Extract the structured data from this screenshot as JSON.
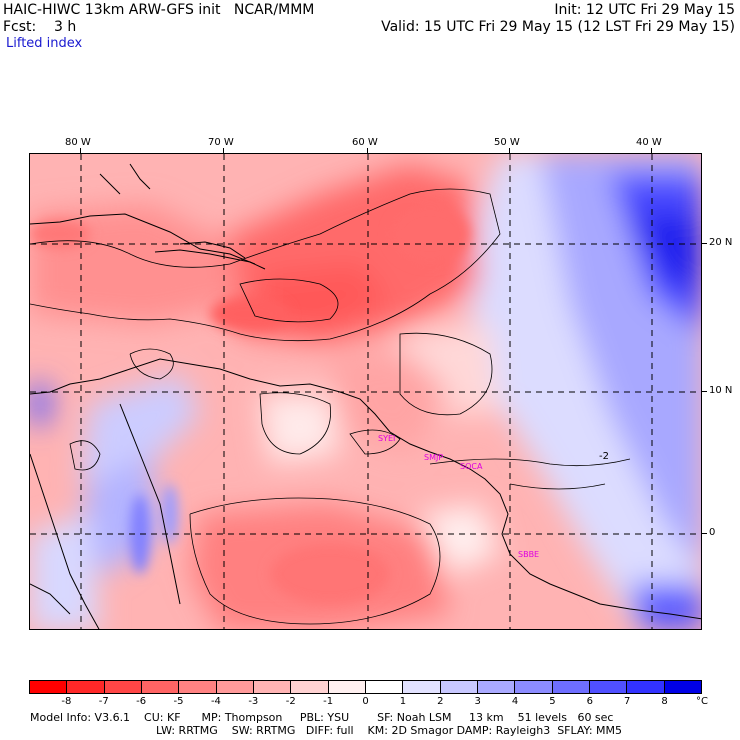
{
  "header": {
    "line1_left": "HAIC-HIWC 13km ARW-GFS init   NCAR/MMM",
    "line1_right": "Init: 12 UTC Fri 29 May 15",
    "line2_left": "Fcst:    3 h",
    "line2_right": "Valid: 15 UTC Fri 29 May 15 (12 LST Fri 29 May 15)",
    "field_name": "Lifted index"
  },
  "map": {
    "lon_labels": [
      "80 W",
      "70 W",
      "60 W",
      "50 W",
      "40 W"
    ],
    "lat_labels": [
      "20 N",
      "10 N",
      "0"
    ],
    "contour_label": "-2",
    "stations": [
      "SYEI",
      "SMJP",
      "SOCA",
      "SBBE"
    ]
  },
  "colorbar": {
    "labels": [
      "-8",
      "-7",
      "-6",
      "-5",
      "-4",
      "-3",
      "-2",
      "-1",
      "0",
      "1",
      "2",
      "3",
      "4",
      "5",
      "6",
      "7",
      "8"
    ],
    "unit": "°C",
    "colors": [
      "#ff0000",
      "#ff2828",
      "#ff4646",
      "#ff6464",
      "#ff8282",
      "#ff9a9a",
      "#ffb4b4",
      "#ffd2d2",
      "#fff0f0",
      "#ffffff",
      "#e2e2ff",
      "#c8c8ff",
      "#aaaaff",
      "#8c8cff",
      "#6e6eff",
      "#5050ff",
      "#3232ff",
      "#0000e6"
    ]
  },
  "footer": {
    "line1": "Model Info: V3.6.1    CU: KF      MP: Thompson     PBL: YSU        SF: Noah LSM     13 km    51 levels   60 sec",
    "line2": "LW: RRTMG    SW: RRTMG   DIFF: full    KM: 2D Smagor DAMP: Rayleigh3  SFLAY: MM5"
  }
}
